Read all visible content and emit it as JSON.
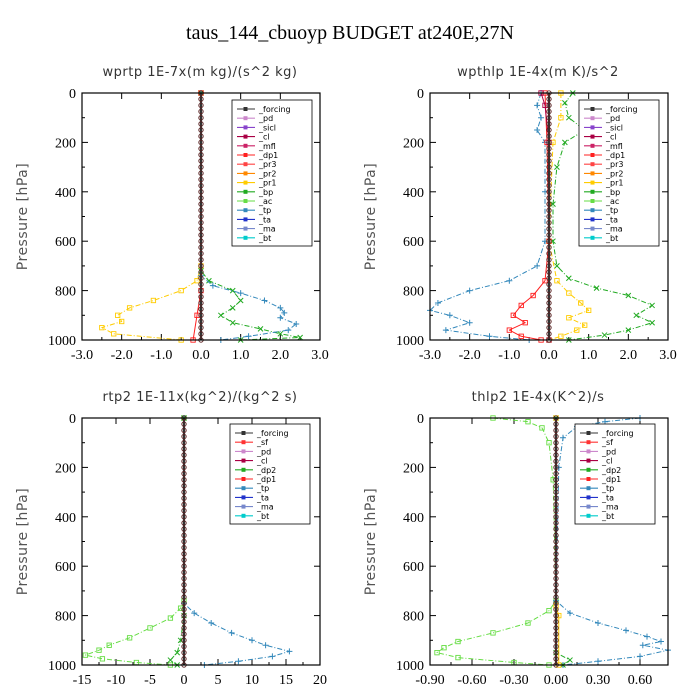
{
  "figure_title": "taus_144_cbuoyp  BUDGET at240E,27N",
  "colors": {
    "forcing": "#333333",
    "pd": "#cc88cc",
    "sicl": "#8844cc",
    "cl": "#aa0044",
    "mfl": "#cc2266",
    "dp1": "#ff2020",
    "dp2": "#22aa22",
    "pr3": "#ff4444",
    "pr2": "#ff8800",
    "pr1": "#ffcc00",
    "bp": "#22aa22",
    "ac": "#66dd44",
    "tp": "#3388bb",
    "ta": "#2233cc",
    "ma": "#7788cc",
    "bt": "#00cccc",
    "sf": "#ff3333"
  },
  "chart_data": [
    {
      "type": "line",
      "title": "wprtp   1E-7x(m kg)/(s^2 kg)",
      "ylabel": "Pressure [hPa]",
      "xlim": [
        -3,
        3
      ],
      "ylim": [
        1000,
        0
      ],
      "y_inverted": true,
      "x_ticks": [
        -3,
        -2,
        -1,
        0,
        1,
        2,
        3
      ],
      "x_tick_labels": [
        "-3.0",
        "-2.0",
        "-1.0",
        "0.0",
        "1.0",
        "2.0",
        "3.0"
      ],
      "y_ticks": [
        0,
        200,
        400,
        600,
        800,
        1000
      ],
      "y_tick_labels": [
        "0",
        "200",
        "400",
        "600",
        "800",
        "1000"
      ],
      "legend": [
        "_forcing",
        "_pd",
        "_sicl",
        "_cl",
        "_mfl",
        "_dp1",
        "_pr3",
        "_pr2",
        "_pr1",
        "_bp",
        "_ac",
        "_tp",
        "_ta",
        "_ma",
        "_bt"
      ],
      "legend_position": "top-right",
      "series": [
        {
          "key": "pr1",
          "style": "dashdot",
          "points": [
            [
              0.0,
              0
            ],
            [
              0.0,
              700
            ],
            [
              -0.1,
              760
            ],
            [
              -0.5,
              800
            ],
            [
              -1.2,
              840
            ],
            [
              -1.8,
              870
            ],
            [
              -2.1,
              900
            ],
            [
              -2.0,
              925
            ],
            [
              -2.5,
              950
            ],
            [
              -2.2,
              975
            ],
            [
              -0.5,
              1000
            ]
          ]
        },
        {
          "key": "bp",
          "style": "dashdot",
          "points": [
            [
              0.0,
              0
            ],
            [
              0.0,
              720
            ],
            [
              0.2,
              760
            ],
            [
              0.8,
              800
            ],
            [
              1.0,
              840
            ],
            [
              0.8,
              870
            ],
            [
              0.5,
              900
            ],
            [
              0.8,
              930
            ],
            [
              1.5,
              955
            ],
            [
              2.0,
              975
            ],
            [
              2.5,
              990
            ],
            [
              1.0,
              1000
            ]
          ]
        },
        {
          "key": "tp",
          "style": "dashdot",
          "points": [
            [
              0.0,
              0
            ],
            [
              0.0,
              740
            ],
            [
              0.3,
              780
            ],
            [
              1.0,
              810
            ],
            [
              1.6,
              840
            ],
            [
              2.0,
              870
            ],
            [
              2.1,
              890
            ],
            [
              2.0,
              910
            ],
            [
              2.4,
              935
            ],
            [
              2.2,
              960
            ],
            [
              1.2,
              985
            ],
            [
              0.5,
              1000
            ]
          ]
        },
        {
          "key": "dp1",
          "style": "solid",
          "points": [
            [
              0.0,
              0
            ],
            [
              0.0,
              800
            ],
            [
              -0.1,
              900
            ],
            [
              -0.2,
              1000
            ]
          ]
        },
        {
          "key": "forcing",
          "style": "solid",
          "points": [
            [
              0.0,
              0
            ],
            [
              0.0,
              1000
            ]
          ]
        }
      ]
    },
    {
      "type": "line",
      "title": "wpthlp   1E-4x(m K)/s^2",
      "ylabel": "Pressure [hPa]",
      "xlim": [
        -3,
        3
      ],
      "ylim": [
        1000,
        0
      ],
      "y_inverted": true,
      "x_ticks": [
        -3,
        -2,
        -1,
        0,
        1,
        2,
        3
      ],
      "x_tick_labels": [
        "-3.0",
        "-2.0",
        "-1.0",
        "0.0",
        "1.0",
        "2.0",
        "3.0"
      ],
      "y_ticks": [
        0,
        200,
        400,
        600,
        800,
        1000
      ],
      "y_tick_labels": [
        "0",
        "200",
        "400",
        "600",
        "800",
        "1000"
      ],
      "legend": [
        "_forcing",
        "_pd",
        "_sicl",
        "_cl",
        "_mfl",
        "_dp1",
        "_pr3",
        "_pr2",
        "_pr1",
        "_bp",
        "_ac",
        "_tp",
        "_ta",
        "_ma",
        "_bt"
      ],
      "legend_position": "top-right",
      "series": [
        {
          "key": "bp",
          "style": "dashdot",
          "points": [
            [
              0.6,
              0
            ],
            [
              0.4,
              40
            ],
            [
              0.5,
              100
            ],
            [
              0.9,
              150
            ],
            [
              0.4,
              200
            ],
            [
              0.2,
              300
            ],
            [
              0.1,
              450
            ],
            [
              0.1,
              600
            ],
            [
              0.2,
              700
            ],
            [
              0.5,
              750
            ],
            [
              1.2,
              790
            ],
            [
              2.0,
              820
            ],
            [
              2.6,
              860
            ],
            [
              2.2,
              900
            ],
            [
              2.6,
              930
            ],
            [
              2.0,
              960
            ],
            [
              1.4,
              980
            ],
            [
              0.5,
              1000
            ]
          ]
        },
        {
          "key": "tp",
          "style": "dashdot",
          "points": [
            [
              -0.2,
              0
            ],
            [
              -0.3,
              50
            ],
            [
              -0.2,
              100
            ],
            [
              -0.3,
              150
            ],
            [
              -0.1,
              200
            ],
            [
              -0.1,
              400
            ],
            [
              -0.1,
              600
            ],
            [
              -0.3,
              700
            ],
            [
              -1.0,
              760
            ],
            [
              -2.0,
              800
            ],
            [
              -2.8,
              850
            ],
            [
              -3.0,
              880
            ],
            [
              -2.5,
              900
            ],
            [
              -2.0,
              930
            ],
            [
              -2.6,
              960
            ],
            [
              -1.5,
              985
            ],
            [
              -0.5,
              1000
            ]
          ]
        },
        {
          "key": "pr1",
          "style": "dashdot",
          "points": [
            [
              0.3,
              0
            ],
            [
              0.3,
              100
            ],
            [
              0.1,
              200
            ],
            [
              0.0,
              600
            ],
            [
              0.2,
              760
            ],
            [
              0.5,
              810
            ],
            [
              0.8,
              850
            ],
            [
              1.0,
              880
            ],
            [
              0.5,
              910
            ],
            [
              0.9,
              940
            ],
            [
              0.7,
              960
            ],
            [
              0.3,
              985
            ],
            [
              0.0,
              1000
            ]
          ]
        },
        {
          "key": "dp1",
          "style": "solid",
          "points": [
            [
              -0.1,
              0
            ],
            [
              -0.05,
              200
            ],
            [
              0.0,
              600
            ],
            [
              -0.1,
              760
            ],
            [
              -0.4,
              820
            ],
            [
              -0.7,
              860
            ],
            [
              -0.9,
              900
            ],
            [
              -0.6,
              930
            ],
            [
              -1.0,
              960
            ],
            [
              -0.7,
              985
            ],
            [
              -0.2,
              1000
            ]
          ]
        },
        {
          "key": "cl",
          "style": "solid",
          "points": [
            [
              -0.2,
              0
            ],
            [
              -0.1,
              50
            ],
            [
              0.0,
              200
            ],
            [
              0.0,
              1000
            ]
          ]
        },
        {
          "key": "forcing",
          "style": "solid",
          "points": [
            [
              0.0,
              0
            ],
            [
              0.0,
              1000
            ]
          ]
        }
      ]
    },
    {
      "type": "line",
      "title": "rtp2   1E-11x(kg^2)/(kg^2 s)",
      "ylabel": "Pressure [hPa]",
      "xlim": [
        -15,
        20
      ],
      "ylim": [
        1000,
        0
      ],
      "y_inverted": true,
      "x_ticks": [
        -15,
        -10,
        -5,
        0,
        5,
        10,
        15,
        20
      ],
      "x_tick_labels": [
        "-15",
        "-10",
        "-5",
        "0",
        "5",
        "10",
        "15",
        "20"
      ],
      "y_ticks": [
        0,
        200,
        400,
        600,
        800,
        1000
      ],
      "y_tick_labels": [
        "0",
        "200",
        "400",
        "600",
        "800",
        "1000"
      ],
      "legend": [
        "_forcing",
        "_sf",
        "_pd",
        "_cl",
        "_dp2",
        "_dp1",
        "_tp",
        "_ta",
        "_ma",
        "_bt"
      ],
      "legend_position": "top-right",
      "series": [
        {
          "key": "ac",
          "style": "dashdot",
          "points": [
            [
              0.0,
              0
            ],
            [
              0.0,
              740
            ],
            [
              -0.5,
              770
            ],
            [
              -2.0,
              810
            ],
            [
              -5.0,
              850
            ],
            [
              -8.0,
              890
            ],
            [
              -11.0,
              920
            ],
            [
              -12.5,
              940
            ],
            [
              -14.5,
              960
            ],
            [
              -12.0,
              975
            ],
            [
              -7.0,
              990
            ],
            [
              -2.0,
              1000
            ]
          ]
        },
        {
          "key": "tp",
          "style": "dashdot",
          "points": [
            [
              0.0,
              0
            ],
            [
              0.0,
              750
            ],
            [
              1.5,
              790
            ],
            [
              4.0,
              830
            ],
            [
              7.0,
              870
            ],
            [
              10.0,
              900
            ],
            [
              12.0,
              920
            ],
            [
              15.5,
              945
            ],
            [
              13.0,
              965
            ],
            [
              8.0,
              985
            ],
            [
              3.0,
              1000
            ]
          ]
        },
        {
          "key": "dp2",
          "style": "dashdot",
          "points": [
            [
              0.0,
              0
            ],
            [
              0.0,
              800
            ],
            [
              -0.5,
              900
            ],
            [
              -1.0,
              950
            ],
            [
              -2.0,
              980
            ],
            [
              -1.0,
              1000
            ]
          ]
        },
        {
          "key": "forcing",
          "style": "solid",
          "points": [
            [
              0.0,
              0
            ],
            [
              0.0,
              1000
            ]
          ]
        }
      ]
    },
    {
      "type": "line",
      "title": "thlp2   1E-4x(K^2)/s",
      "ylabel": "Pressure [hPa]",
      "xlim": [
        -0.9,
        0.8
      ],
      "ylim": [
        1000,
        0
      ],
      "y_inverted": true,
      "x_ticks": [
        -0.9,
        -0.6,
        -0.3,
        0.0,
        0.3,
        0.6
      ],
      "x_tick_labels": [
        "-0.90",
        "-0.60",
        "-0.30",
        "0.00",
        "0.30",
        "0.60"
      ],
      "y_ticks": [
        0,
        200,
        400,
        600,
        800,
        1000
      ],
      "y_tick_labels": [
        "0",
        "200",
        "400",
        "600",
        "800",
        "1000"
      ],
      "legend": [
        "_forcing",
        "_sf",
        "_pd",
        "_cl",
        "_dp2",
        "_dp1",
        "_tp",
        "_ta",
        "_ma",
        "_bt"
      ],
      "legend_position": "top-right",
      "series": [
        {
          "key": "ac",
          "style": "dashdot",
          "points": [
            [
              -0.45,
              0
            ],
            [
              -0.2,
              15
            ],
            [
              -0.1,
              40
            ],
            [
              -0.05,
              100
            ],
            [
              -0.02,
              250
            ],
            [
              0.0,
              740
            ],
            [
              -0.05,
              780
            ],
            [
              -0.2,
              830
            ],
            [
              -0.45,
              870
            ],
            [
              -0.7,
              905
            ],
            [
              -0.8,
              930
            ],
            [
              -0.85,
              950
            ],
            [
              -0.7,
              970
            ],
            [
              -0.3,
              990
            ],
            [
              -0.05,
              1000
            ]
          ]
        },
        {
          "key": "tp",
          "style": "dashdot",
          "points": [
            [
              0.6,
              0
            ],
            [
              0.35,
              15
            ],
            [
              0.15,
              35
            ],
            [
              0.05,
              80
            ],
            [
              0.02,
              200
            ],
            [
              0.0,
              740
            ],
            [
              0.1,
              790
            ],
            [
              0.3,
              830
            ],
            [
              0.5,
              860
            ],
            [
              0.65,
              885
            ],
            [
              0.75,
              905
            ],
            [
              0.62,
              920
            ],
            [
              0.8,
              940
            ],
            [
              0.6,
              965
            ],
            [
              0.3,
              985
            ],
            [
              0.05,
              1000
            ]
          ]
        },
        {
          "key": "dp2",
          "style": "dashdot",
          "points": [
            [
              0.0,
              0
            ],
            [
              0.0,
              950
            ],
            [
              0.1,
              980
            ],
            [
              0.05,
              1000
            ]
          ]
        },
        {
          "key": "pr1",
          "style": "solid",
          "points": [
            [
              0.0,
              0
            ],
            [
              0.0,
              760
            ],
            [
              0.02,
              800
            ],
            [
              0.02,
              1000
            ]
          ]
        },
        {
          "key": "forcing",
          "style": "solid",
          "points": [
            [
              0.0,
              0
            ],
            [
              0.0,
              1000
            ]
          ]
        }
      ]
    }
  ]
}
